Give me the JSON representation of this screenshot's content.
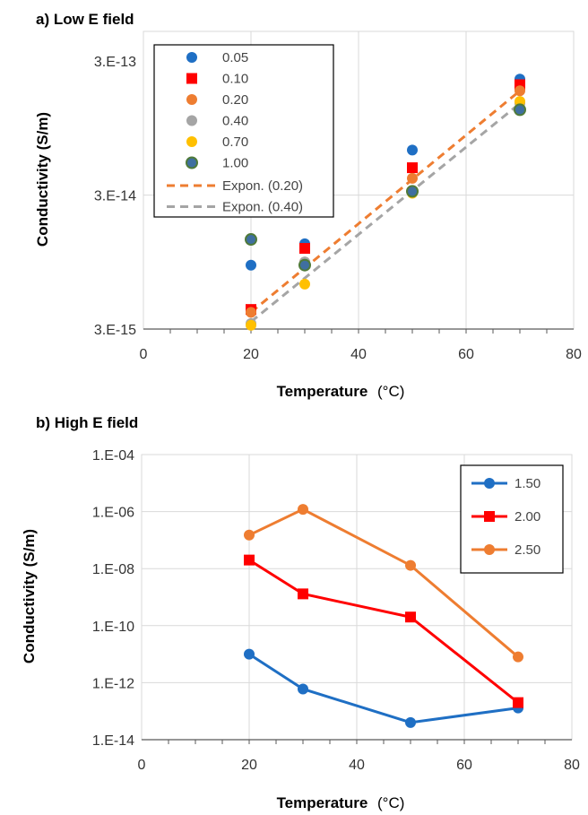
{
  "chart_data": [
    {
      "type": "scatter",
      "title": "a) Low E field",
      "xlabel": "Temperature",
      "xlabel_unit": "(°C)",
      "ylabel": "Conductivity (S/m)",
      "xlim": [
        0,
        80
      ],
      "ylim": [
        3e-15,
        5e-13
      ],
      "y_scale": "log",
      "grid": true,
      "legend_position": "top-left",
      "x_ticks": [
        "0",
        "20",
        "40",
        "60",
        "80"
      ],
      "y_ticks": [
        "3.E-15",
        "3.E-14",
        "3.E-13"
      ],
      "x": [
        20,
        30,
        50,
        70
      ],
      "series": [
        {
          "name": "0.05",
          "values": [
            9e-15,
            1.3e-14,
            6.5e-14,
            2.2e-13
          ],
          "color": "#1f6fc4",
          "marker": "circle"
        },
        {
          "name": "0.10",
          "values": [
            4.2e-15,
            1.2e-14,
            4.8e-14,
            2e-13
          ],
          "color": "#ff0000",
          "marker": "square"
        },
        {
          "name": "0.20",
          "values": [
            4e-15,
            9.5e-15,
            4e-14,
            1.8e-13
          ],
          "color": "#ee7d31",
          "marker": "circle"
        },
        {
          "name": "0.40",
          "values": [
            3.3e-15,
            9.5e-15,
            3.2e-14,
            1.45e-13
          ],
          "color": "#a5a5a5",
          "marker": "circle"
        },
        {
          "name": "0.70",
          "values": [
            3.2e-15,
            6.5e-15,
            3.1e-14,
            1.5e-13
          ],
          "color": "#ffc000",
          "marker": "circle"
        },
        {
          "name": "1.00",
          "values": [
            1.4e-14,
            9e-15,
            3.2e-14,
            1.3e-13
          ],
          "color": "#4f7a3a",
          "marker": "circle",
          "fill": "#3f6fa0"
        }
      ],
      "trendlines": [
        {
          "name": "Expon. (0.20)",
          "color": "#ee7d31",
          "x": [
            20,
            70
          ],
          "values": [
            4e-15,
            1.8e-13
          ]
        },
        {
          "name": "Expon. (0.40)",
          "color": "#a5a5a5",
          "x": [
            20,
            70
          ],
          "values": [
            3.4e-15,
            1.45e-13
          ]
        }
      ]
    },
    {
      "type": "line",
      "title": "b) High E field",
      "xlabel": "Temperature",
      "xlabel_unit": "(°C)",
      "ylabel": "Conductivity (S/m)",
      "xlim": [
        0,
        80
      ],
      "ylim": [
        1e-14,
        0.0001
      ],
      "y_scale": "log",
      "grid": true,
      "legend_position": "top-right",
      "x_ticks": [
        "0",
        "20",
        "40",
        "60",
        "80"
      ],
      "y_ticks": [
        "1.E-14",
        "1.E-12",
        "1.E-10",
        "1.E-08",
        "1.E-06",
        "1.E-04"
      ],
      "x": [
        20,
        30,
        50,
        70
      ],
      "series": [
        {
          "name": "1.50",
          "values": [
            1e-11,
            6e-13,
            4e-14,
            1.3e-13
          ],
          "color": "#1f6fc4",
          "marker": "circle"
        },
        {
          "name": "2.00",
          "values": [
            2e-08,
            1.3e-09,
            2e-10,
            2e-13
          ],
          "color": "#ff0000",
          "marker": "square"
        },
        {
          "name": "2.50",
          "values": [
            1.5e-07,
            1.2e-06,
            1.3e-08,
            8e-12
          ],
          "color": "#ee7d31",
          "marker": "circle"
        }
      ]
    }
  ]
}
